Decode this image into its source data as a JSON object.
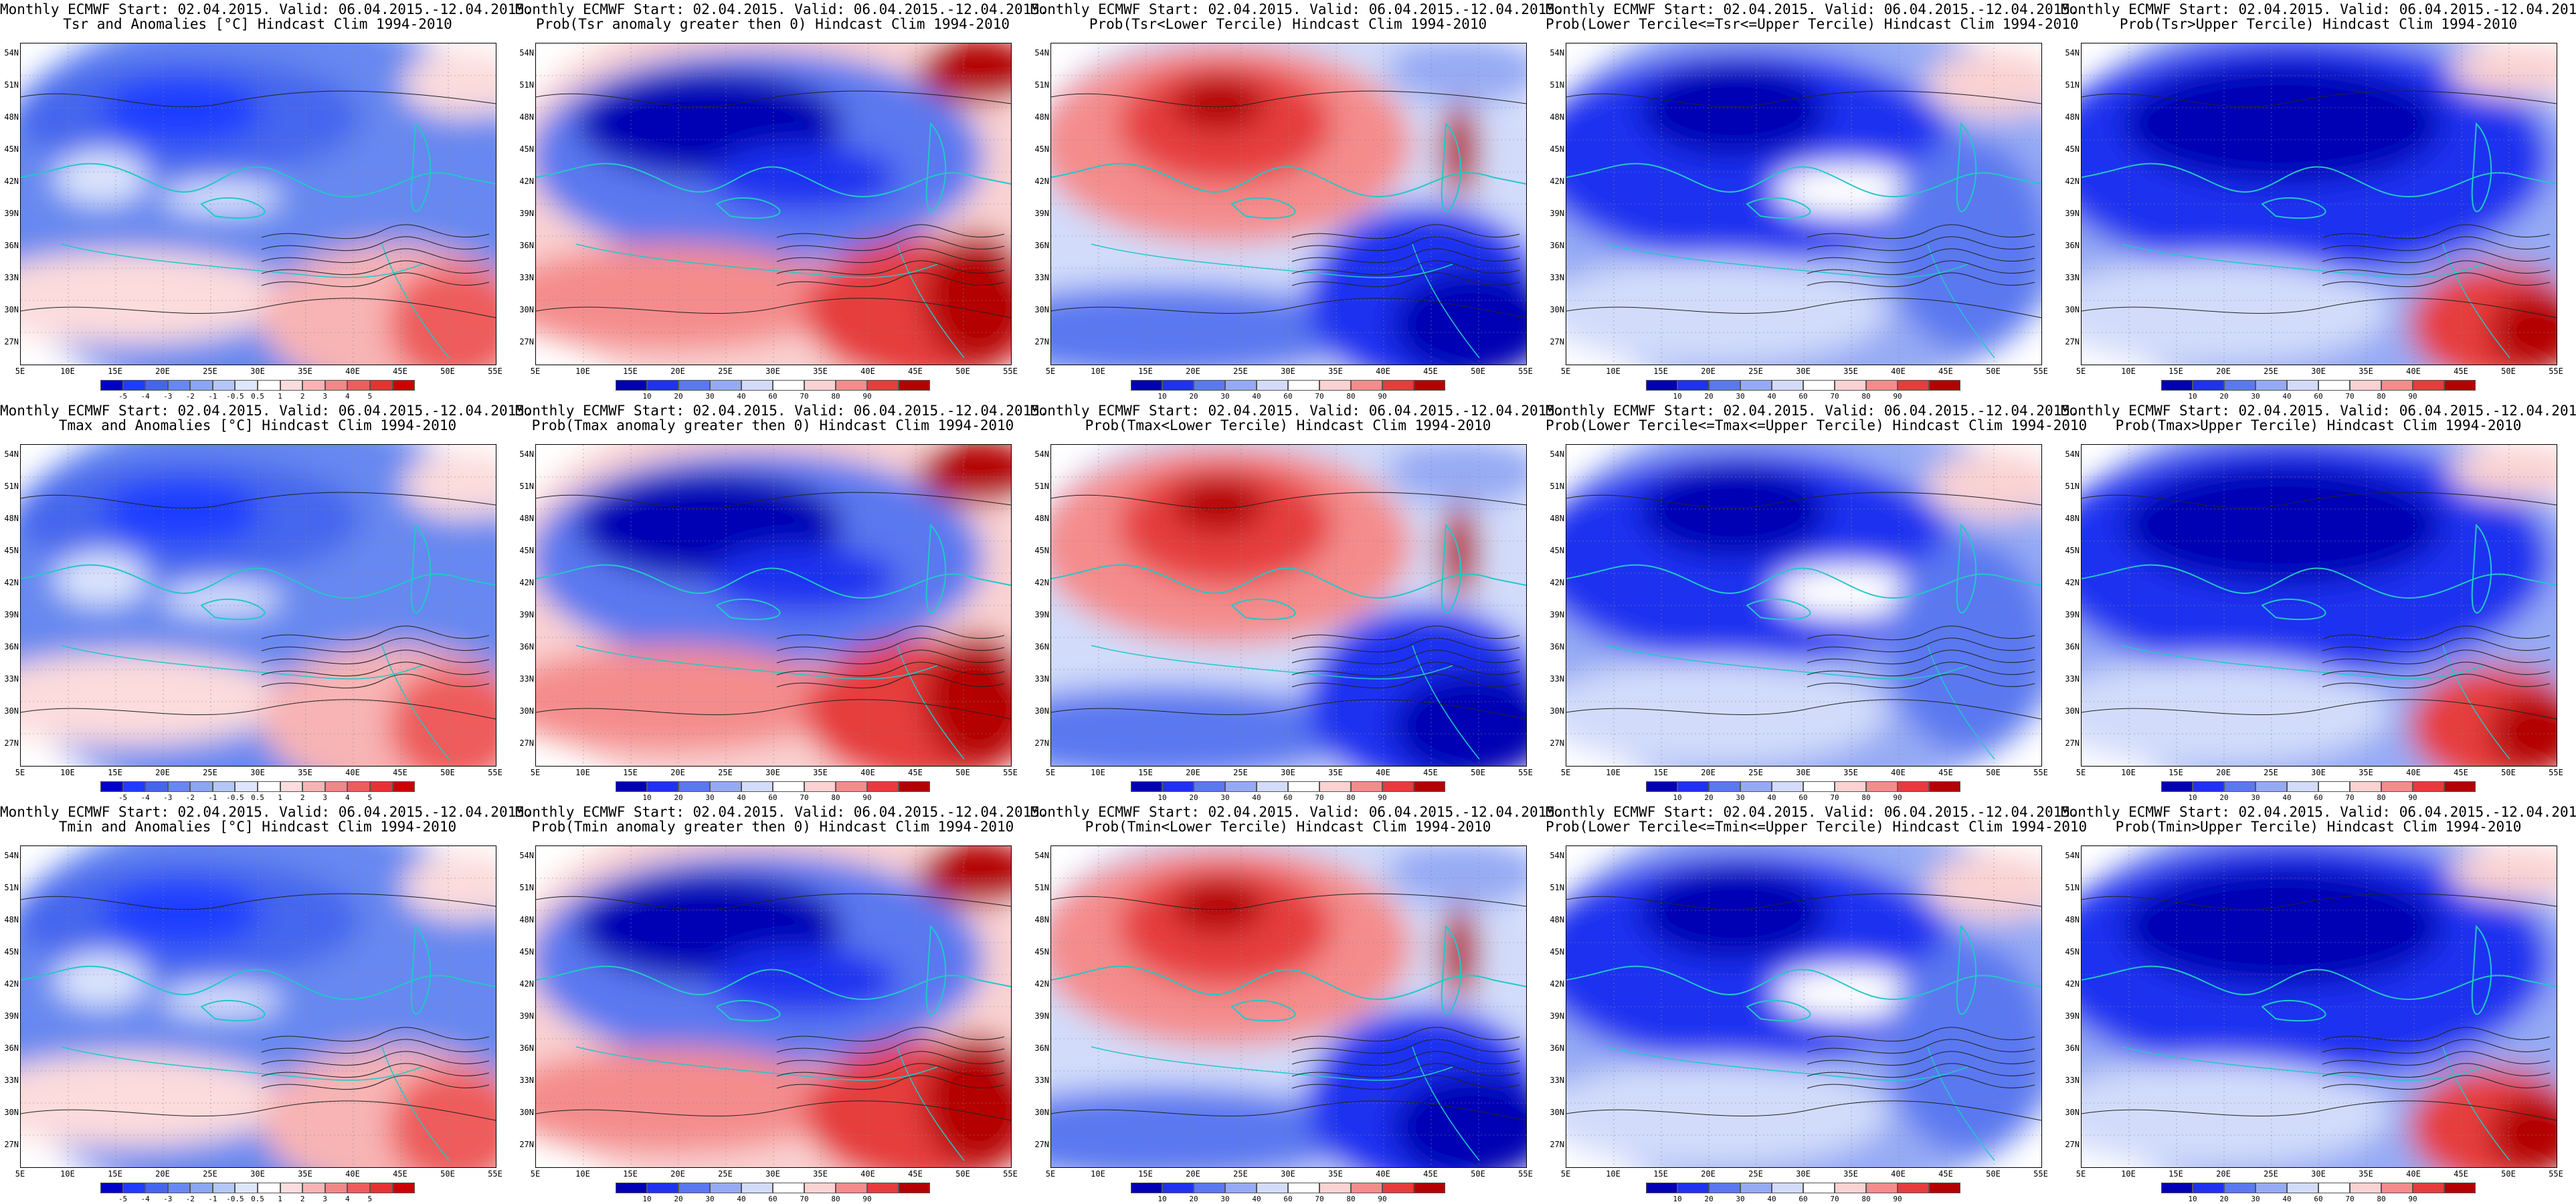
{
  "header_line": "Monthly ECMWF Start: 02.04.2015. Valid: 06.04.2015.-12.04.2015.",
  "lat_labels": [
    "54N",
    "51N",
    "48N",
    "45N",
    "42N",
    "39N",
    "36N",
    "33N",
    "30N",
    "27N"
  ],
  "lon_labels": [
    "5E",
    "10E",
    "15E",
    "20E",
    "25E",
    "30E",
    "35E",
    "40E",
    "45E",
    "50E",
    "55E"
  ],
  "scales": {
    "anomaly": {
      "labels": [
        "-5",
        "-4",
        "-3",
        "-2",
        "-1",
        "-0.5",
        "0.5",
        "1",
        "2",
        "3",
        "4",
        "5"
      ],
      "colors": [
        "#0000c8",
        "#1e3cff",
        "#4466ee",
        "#6688f0",
        "#8aa6f4",
        "#b4c6f8",
        "#dde6fc",
        "#ffffff",
        "#fcdcdc",
        "#f8b4b4",
        "#f08888",
        "#ee5c5c",
        "#e63232",
        "#cc0000"
      ]
    },
    "prob": {
      "labels": [
        "10",
        "20",
        "30",
        "40",
        "60",
        "70",
        "80",
        "90"
      ],
      "colors": [
        "#0000b4",
        "#1e32f0",
        "#5a78f0",
        "#96aaf4",
        "#d2dcfa",
        "#ffffff",
        "#fad2d2",
        "#f48c8c",
        "#e63c3c",
        "#b40000"
      ]
    }
  },
  "panels": [
    {
      "id": "r1c1",
      "line2": "Tsr and Anomalies [°C] Hindcast Clim 1994-2010",
      "scale": "anomaly",
      "pattern": "anom"
    },
    {
      "id": "r1c2",
      "line2": "Prob(Tsr anomaly greater then 0) Hindcast Clim 1994-2010",
      "scale": "prob",
      "pattern": "gt0"
    },
    {
      "id": "r1c3",
      "line2": "Prob(Tsr<Lower Tercile) Hindcast Clim 1994-2010",
      "scale": "prob",
      "pattern": "lower"
    },
    {
      "id": "r1c4",
      "line2": "Prob(Lower Tercile<=Tsr<=Upper Tercile) Hindcast Clim 1994-2010",
      "scale": "prob",
      "pattern": "middle"
    },
    {
      "id": "r1c5",
      "line2": "Prob(Tsr>Upper Tercile) Hindcast Clim 1994-2010",
      "scale": "prob",
      "pattern": "upper"
    },
    {
      "id": "r2c1",
      "line2": "Tmax and Anomalies [°C] Hindcast Clim 1994-2010",
      "scale": "anomaly",
      "pattern": "anom"
    },
    {
      "id": "r2c2",
      "line2": "Prob(Tmax anomaly greater then 0) Hindcast Clim 1994-2010",
      "scale": "prob",
      "pattern": "gt0"
    },
    {
      "id": "r2c3",
      "line2": "Prob(Tmax<Lower Tercile) Hindcast Clim 1994-2010",
      "scale": "prob",
      "pattern": "lower"
    },
    {
      "id": "r2c4",
      "line2": "Prob(Lower Tercile<=Tmax<=Upper Tercile) Hindcast Clim 1994-2010",
      "scale": "prob",
      "pattern": "middle"
    },
    {
      "id": "r2c5",
      "line2": "Prob(Tmax>Upper Tercile) Hindcast Clim 1994-2010",
      "scale": "prob",
      "pattern": "upper"
    },
    {
      "id": "r3c1",
      "line2": "Tmin and Anomalies [°C] Hindcast Clim 1994-2010",
      "scale": "anomaly",
      "pattern": "anom"
    },
    {
      "id": "r3c2",
      "line2": "Prob(Tmin anomaly greater then 0) Hindcast Clim 1994-2010",
      "scale": "prob",
      "pattern": "gt0"
    },
    {
      "id": "r3c3",
      "line2": "Prob(Tmin<Lower Tercile) Hindcast Clim 1994-2010",
      "scale": "prob",
      "pattern": "lower"
    },
    {
      "id": "r3c4",
      "line2": "Prob(Lower Tercile<=Tmin<=Upper Tercile) Hindcast Clim 1994-2010",
      "scale": "prob",
      "pattern": "middle"
    },
    {
      "id": "r3c5",
      "line2": "Prob(Tmin>Upper Tercile) Hindcast Clim 1994-2010",
      "scale": "prob",
      "pattern": "upper"
    }
  ]
}
